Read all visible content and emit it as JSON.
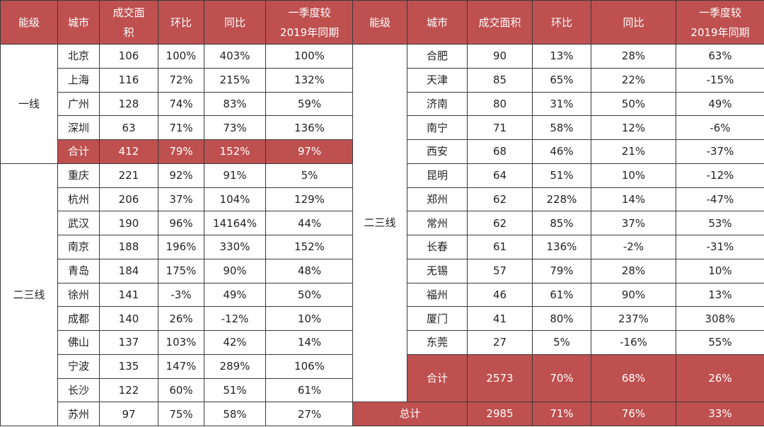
{
  "colors": {
    "header_bg": "#bf5050",
    "header_text": "#ffffff",
    "border": "#3a3a3a"
  },
  "headers_left": [
    "能级",
    "城市",
    "成交面积",
    "环比",
    "同比",
    "一季度较2019年同期"
  ],
  "headers_right": [
    "能级",
    "城市",
    "成交面积",
    "环比",
    "同比",
    "一季度较2019年同期"
  ],
  "left": {
    "groups": [
      {
        "tier": "一线",
        "rows": [
          [
            "北京",
            "106",
            "100%",
            "403%",
            "100%"
          ],
          [
            "上海",
            "116",
            "72%",
            "215%",
            "132%"
          ],
          [
            "广州",
            "128",
            "74%",
            "83%",
            "59%"
          ],
          [
            "深圳",
            "63",
            "71%",
            "73%",
            "136%"
          ]
        ],
        "subtotal": [
          "合计",
          "412",
          "79%",
          "152%",
          "97%"
        ]
      },
      {
        "tier": "二三线",
        "rows": [
          [
            "重庆",
            "221",
            "92%",
            "91%",
            "5%"
          ],
          [
            "杭州",
            "206",
            "37%",
            "104%",
            "129%"
          ],
          [
            "武汉",
            "190",
            "96%",
            "14164%",
            "44%"
          ],
          [
            "南京",
            "188",
            "196%",
            "330%",
            "152%"
          ],
          [
            "青岛",
            "184",
            "175%",
            "90%",
            "48%"
          ],
          [
            "徐州",
            "141",
            "-3%",
            "49%",
            "50%"
          ],
          [
            "成都",
            "140",
            "26%",
            "-12%",
            "10%"
          ],
          [
            "佛山",
            "137",
            "103%",
            "42%",
            "14%"
          ],
          [
            "宁波",
            "135",
            "147%",
            "289%",
            "106%"
          ],
          [
            "长沙",
            "122",
            "60%",
            "51%",
            "61%"
          ],
          [
            "苏州",
            "97",
            "75%",
            "58%",
            "27%"
          ]
        ]
      }
    ]
  },
  "right": {
    "tier": "二三线",
    "rows": [
      [
        "合肥",
        "90",
        "13%",
        "28%",
        "63%"
      ],
      [
        "天津",
        "85",
        "65%",
        "22%",
        "-15%"
      ],
      [
        "济南",
        "80",
        "31%",
        "50%",
        "49%"
      ],
      [
        "南宁",
        "71",
        "58%",
        "12%",
        "-6%"
      ],
      [
        "西安",
        "68",
        "46%",
        "21%",
        "-37%"
      ],
      [
        "昆明",
        "64",
        "51%",
        "10%",
        "-12%"
      ],
      [
        "郑州",
        "62",
        "228%",
        "14%",
        "-47%"
      ],
      [
        "常州",
        "62",
        "85%",
        "37%",
        "53%"
      ],
      [
        "长春",
        "61",
        "136%",
        "-2%",
        "-31%"
      ],
      [
        "无锡",
        "57",
        "79%",
        "28%",
        "10%"
      ],
      [
        "福州",
        "46",
        "61%",
        "90%",
        "13%"
      ],
      [
        "厦门",
        "41",
        "80%",
        "237%",
        "308%"
      ],
      [
        "东莞",
        "27",
        "5%",
        "-16%",
        "55%"
      ]
    ],
    "subtotal": [
      "合计",
      "2573",
      "70%",
      "68%",
      "26%"
    ],
    "grand_total": [
      "总计",
      "2985",
      "71%",
      "76%",
      "33%"
    ]
  }
}
